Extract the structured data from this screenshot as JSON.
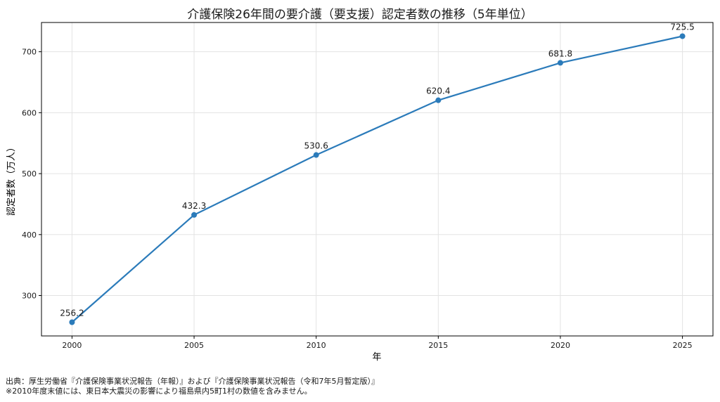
{
  "chart_data": {
    "type": "line",
    "title": "介護保険26年間の要介護（要支援）認定者数の推移（5年単位）",
    "xlabel": "年",
    "ylabel": "認定者数（万人）",
    "x": [
      2000,
      2005,
      2010,
      2015,
      2020,
      2025
    ],
    "values": [
      256.2,
      432.3,
      530.6,
      620.4,
      681.8,
      725.5
    ],
    "data_labels": [
      "256.2",
      "432.3",
      "530.6",
      "620.4",
      "681.8",
      "725.5"
    ],
    "x_ticks": [
      "2000",
      "2005",
      "2010",
      "2015",
      "2020",
      "2025"
    ],
    "y_ticks": [
      300,
      400,
      500,
      600,
      700
    ],
    "y_tick_labels": [
      "300",
      "400",
      "500",
      "600",
      "700"
    ],
    "xlim": [
      1998.75,
      2026.25
    ],
    "ylim": [
      233.7,
      748.0
    ],
    "grid": true,
    "line_color": "#2b7bba"
  },
  "source": {
    "line1": "出典：厚生労働省『介護保険事業状況報告（年報）』および『介護保険事業状況報告（令和7年5月暫定版）』",
    "line2": "※2010年度末値には、東日本大震災の影響により福島県内5町1村の数値を含みません。"
  }
}
